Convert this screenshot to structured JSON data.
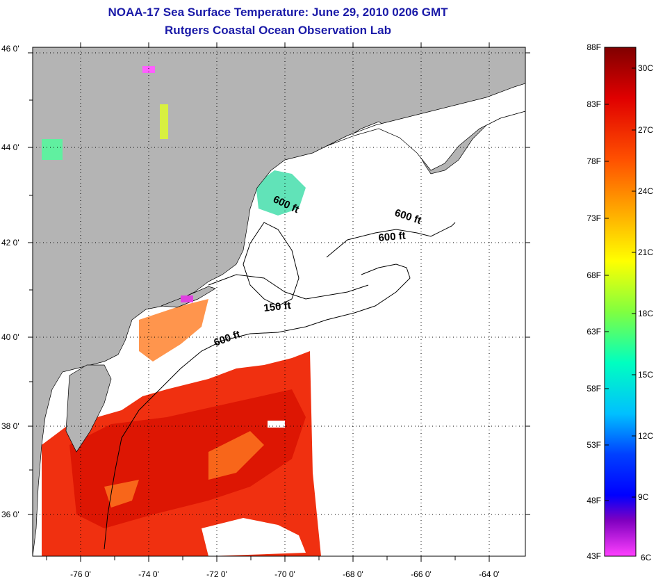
{
  "header": {
    "title_line1": "NOAA-17 Sea Surface Temperature:  June 29, 2010 0206 GMT",
    "title_line2": "Rutgers Coastal Ocean Observation Lab"
  },
  "map": {
    "lat_labels": [
      "46 0'",
      "44 0'",
      "42 0'",
      "40 0'",
      "38 0'",
      "36 0'"
    ],
    "lon_labels": [
      "-76 0'",
      "-74 0'",
      "-72 0'",
      "-70 0'",
      "-68 0'",
      "-66 0'",
      "-64 0'"
    ],
    "contour_labels": [
      "600 ft",
      "600 ft",
      "600 ft",
      "150 ft",
      "600 ft"
    ],
    "land_color": "#b4b4b4",
    "no_data_color": "#ffffff"
  },
  "colorbar": {
    "f_labels": [
      "88F",
      "83F",
      "78F",
      "73F",
      "68F",
      "63F",
      "58F",
      "53F",
      "48F",
      "43F"
    ],
    "c_labels": [
      "30C",
      "27C",
      "24C",
      "21C",
      "18C",
      "15C",
      "12C",
      "9C",
      "6C"
    ],
    "colors": [
      "#800000",
      "#e00000",
      "#ff5000",
      "#ffb000",
      "#ffff00",
      "#80ff40",
      "#00ffc0",
      "#00c0ff",
      "#0040ff",
      "#0000ff",
      "#8000c0",
      "#ff40ff"
    ]
  }
}
